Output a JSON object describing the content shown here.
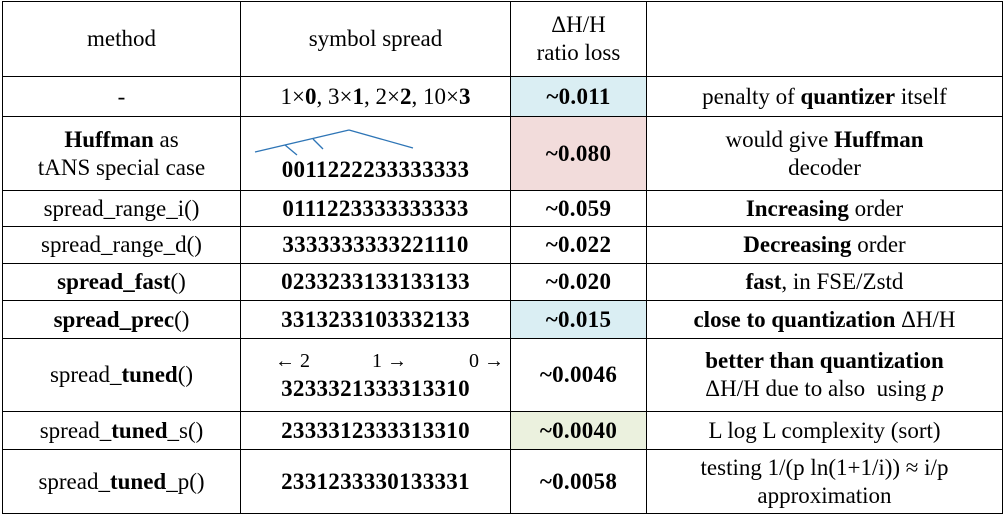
{
  "table": {
    "header": [
      "method",
      "symbol spread",
      [
        "ΔH/H",
        "ratio loss"
      ]
    ],
    "rows": [
      [
        [
          "-"
        ],
        [
          "1×",
          "0",
          ", 3×",
          "1",
          ", 2×",
          "2",
          ", 10×",
          "3"
        ],
        "~0.011",
        [
          "penalty of ",
          "quantizer",
          " itself"
        ]
      ],
      [
        [
          "Huffman",
          " as",
          "tANS special case"
        ],
        [
          "0011222233333333"
        ],
        "~0.080",
        [
          "would give ",
          "Huffman",
          "decoder"
        ]
      ],
      [
        [
          "spread_range_i()"
        ],
        [
          "0111223333333333"
        ],
        "~0.059",
        [
          "Increasing",
          " order"
        ]
      ],
      [
        [
          "spread_range_d()"
        ],
        [
          "3333333333221110"
        ],
        "~0.022",
        [
          "Decreasing",
          " order"
        ]
      ],
      [
        [
          "spread_fast",
          "()"
        ],
        [
          "0233233133133133"
        ],
        "~0.020",
        [
          "fast",
          ", in FSE/Zstd"
        ]
      ],
      [
        [
          "spread_prec",
          "()"
        ],
        [
          "3313233103332133"
        ],
        "~0.015",
        [
          "close to quantization",
          " ΔH/H"
        ]
      ],
      [
        [
          "spread_",
          "tuned",
          "()"
        ],
        [
          "← 2",
          "1 →",
          "0 →",
          "3233321333313310"
        ],
        "~0.0046",
        [
          "better than quantization",
          "ΔH/H due to also  using ",
          "p"
        ]
      ],
      [
        [
          "spread_",
          "tuned",
          "_s()"
        ],
        [
          "2333312333313310"
        ],
        "~0.0040",
        [
          "L log L complexity (sort)"
        ]
      ],
      [
        [
          "spread_",
          "tuned",
          "_p()"
        ],
        [
          "2331233330133331"
        ],
        "~0.0058",
        [
          "testing 1/(p ln(1+1/i)) ≈ i/p",
          "approximation"
        ]
      ]
    ]
  }
}
